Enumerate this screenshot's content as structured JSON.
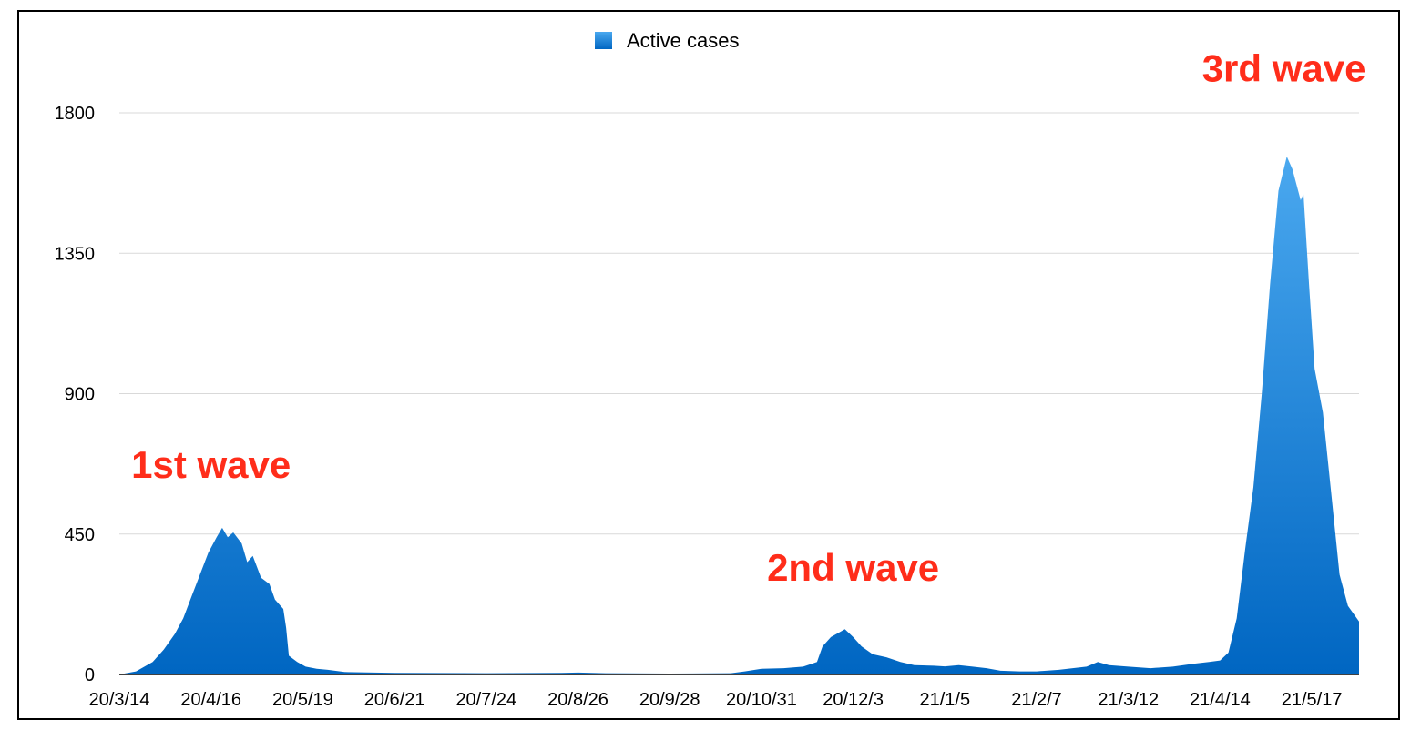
{
  "chart_data": {
    "type": "area",
    "colors": {
      "fill_top": "#4aa8ef",
      "fill_bottom": "#0066c2",
      "annotation": "#ff2d1a",
      "grid": "#d9d9d9"
    },
    "series": [
      {
        "name": "Active cases",
        "points": [
          [
            "20/3/14",
            0
          ],
          [
            "20/3/20",
            10
          ],
          [
            "20/3/26",
            40
          ],
          [
            "20/3/30",
            80
          ],
          [
            "20/4/3",
            130
          ],
          [
            "20/4/6",
            180
          ],
          [
            "20/4/9",
            250
          ],
          [
            "20/4/12",
            320
          ],
          [
            "20/4/15",
            390
          ],
          [
            "20/4/18",
            440
          ],
          [
            "20/4/20",
            470
          ],
          [
            "20/4/22",
            440
          ],
          [
            "20/4/24",
            455
          ],
          [
            "20/4/27",
            420
          ],
          [
            "20/4/29",
            360
          ],
          [
            "20/5/1",
            380
          ],
          [
            "20/5/4",
            310
          ],
          [
            "20/5/7",
            290
          ],
          [
            "20/5/9",
            240
          ],
          [
            "20/5/12",
            210
          ],
          [
            "20/5/13",
            150
          ],
          [
            "20/5/14",
            60
          ],
          [
            "20/5/17",
            40
          ],
          [
            "20/5/20",
            25
          ],
          [
            "20/5/24",
            18
          ],
          [
            "20/5/28",
            15
          ],
          [
            "20/6/3",
            8
          ],
          [
            "20/6/21",
            5
          ],
          [
            "20/7/24",
            4
          ],
          [
            "20/8/20",
            5
          ],
          [
            "20/8/26",
            6
          ],
          [
            "20/9/5",
            4
          ],
          [
            "20/9/28",
            3
          ],
          [
            "20/10/20",
            4
          ],
          [
            "20/10/25",
            10
          ],
          [
            "20/10/31",
            18
          ],
          [
            "20/11/8",
            20
          ],
          [
            "20/11/15",
            25
          ],
          [
            "20/11/20",
            40
          ],
          [
            "20/11/22",
            90
          ],
          [
            "20/11/25",
            120
          ],
          [
            "20/11/28",
            135
          ],
          [
            "20/11/30",
            145
          ],
          [
            "20/12/3",
            120
          ],
          [
            "20/12/6",
            90
          ],
          [
            "20/12/10",
            65
          ],
          [
            "20/12/15",
            55
          ],
          [
            "20/12/20",
            40
          ],
          [
            "20/12/25",
            30
          ],
          [
            "21/1/1",
            28
          ],
          [
            "21/1/5",
            26
          ],
          [
            "21/1/10",
            30
          ],
          [
            "21/1/15",
            25
          ],
          [
            "21/1/20",
            20
          ],
          [
            "21/1/25",
            12
          ],
          [
            "21/2/1",
            10
          ],
          [
            "21/2/7",
            10
          ],
          [
            "21/2/15",
            15
          ],
          [
            "21/2/25",
            25
          ],
          [
            "21/3/1",
            40
          ],
          [
            "21/3/5",
            30
          ],
          [
            "21/3/12",
            25
          ],
          [
            "21/3/20",
            20
          ],
          [
            "21/3/28",
            25
          ],
          [
            "21/4/5",
            35
          ],
          [
            "21/4/10",
            40
          ],
          [
            "21/4/14",
            45
          ],
          [
            "21/4/17",
            70
          ],
          [
            "21/4/20",
            180
          ],
          [
            "21/4/23",
            400
          ],
          [
            "21/4/26",
            600
          ],
          [
            "21/4/29",
            900
          ],
          [
            "21/5/2",
            1250
          ],
          [
            "21/5/5",
            1550
          ],
          [
            "21/5/8",
            1660
          ],
          [
            "21/5/10",
            1620
          ],
          [
            "21/5/13",
            1520
          ],
          [
            "21/5/14",
            1540
          ],
          [
            "21/5/16",
            1250
          ],
          [
            "21/5/18",
            980
          ],
          [
            "21/5/21",
            840
          ],
          [
            "21/5/24",
            580
          ],
          [
            "21/5/27",
            320
          ],
          [
            "21/5/30",
            220
          ],
          [
            "21/6/3",
            170
          ]
        ]
      }
    ],
    "x_tick_labels": [
      "20/3/14",
      "20/4/16",
      "20/5/19",
      "20/6/21",
      "20/7/24",
      "20/8/26",
      "20/9/28",
      "20/10/31",
      "20/12/3",
      "21/1/5",
      "21/2/7",
      "21/3/12",
      "21/4/14",
      "21/5/17"
    ],
    "y_ticks": [
      0,
      450,
      900,
      1350,
      1800
    ],
    "xlim": [
      "20/3/14",
      "21/6/3"
    ],
    "ylim": [
      0,
      1800
    ],
    "grid": true,
    "legend_position": "top-center",
    "annotations": [
      {
        "text": "1st wave",
        "x": "20/4/16",
        "y": 630
      },
      {
        "text": "2nd wave",
        "x": "20/12/3",
        "y": 300
      },
      {
        "text": "3rd wave",
        "x": "21/5/7",
        "y": 1900
      }
    ]
  }
}
